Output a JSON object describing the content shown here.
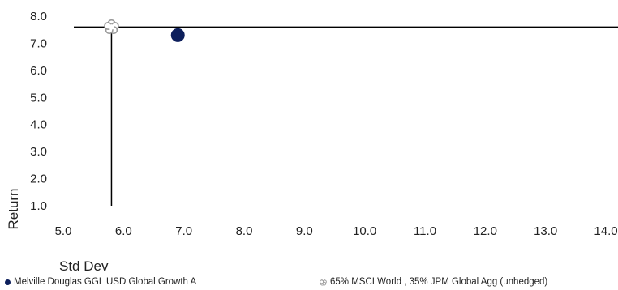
{
  "chart_data": {
    "type": "scatter",
    "xlabel": "Std Dev",
    "ylabel": "Return",
    "xlim": [
      5.0,
      14.0
    ],
    "ylim": [
      1.0,
      8.0
    ],
    "x_ticks": [
      "5.0",
      "6.0",
      "7.0",
      "8.0",
      "9.0",
      "10.0",
      "11.0",
      "12.0",
      "13.0",
      "14.0"
    ],
    "y_ticks": [
      "8.0",
      "7.0",
      "6.0",
      "5.0",
      "4.0",
      "3.0",
      "2.0",
      "1.0"
    ],
    "series": [
      {
        "name": "Melville Douglas GGL USD Global Growth A",
        "marker": "circle",
        "color": "#0d1f5c",
        "x": [
          6.9
        ],
        "y": [
          7.3
        ]
      },
      {
        "name": "65% MSCI World , 35% JPM Global Agg (unhedged)",
        "marker": "flower",
        "color": "#9a9a9a",
        "x": [
          5.8
        ],
        "y": [
          7.6
        ]
      }
    ],
    "reference_lines": {
      "x": 5.8,
      "y": 7.6,
      "color": "#000000"
    },
    "grid": false
  }
}
